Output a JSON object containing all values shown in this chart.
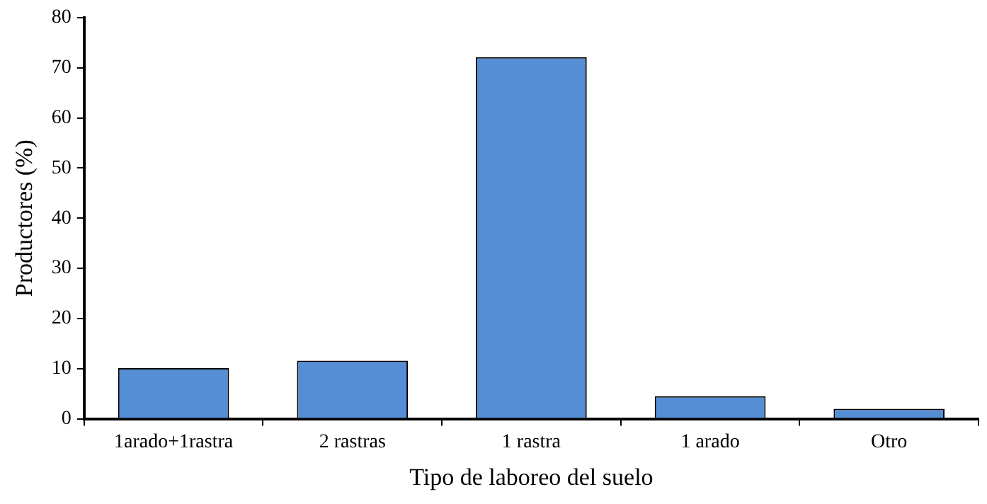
{
  "chart_data": {
    "type": "bar",
    "xlabel": "Tipo de laboreo del suelo",
    "ylabel": "Productores (%)",
    "categories": [
      "1arado+1rastra",
      "2 rastras",
      "1 rastra",
      "1 arado",
      "Otro"
    ],
    "values": [
      10.1,
      11.6,
      72.1,
      4.5,
      2.0
    ],
    "color": "#558ed5",
    "ylim": [
      0,
      80
    ],
    "yticks": [
      0,
      10,
      20,
      30,
      40,
      50,
      60,
      70,
      80
    ],
    "grid": false,
    "legend": false
  }
}
